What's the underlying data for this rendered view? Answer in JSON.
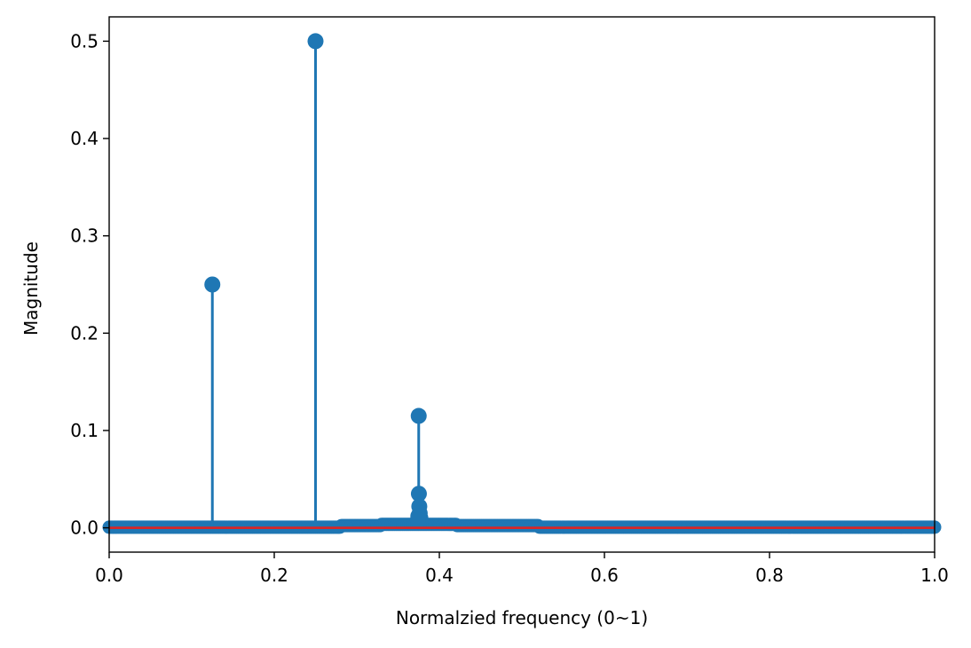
{
  "chart_data": {
    "type": "stem",
    "xlabel": "Normalzied frequency (0~1)",
    "ylabel": "Magnitude",
    "xlim": [
      0.0,
      1.0
    ],
    "ylim": [
      -0.025,
      0.525
    ],
    "xticks": [
      0.0,
      0.2,
      0.4,
      0.6,
      0.8,
      1.0
    ],
    "xtick_labels": [
      "0.0",
      "0.2",
      "0.4",
      "0.6",
      "0.8",
      "1.0"
    ],
    "yticks": [
      0.0,
      0.1,
      0.2,
      0.3,
      0.4,
      0.5
    ],
    "ytick_labels": [
      "0.0",
      "0.1",
      "0.2",
      "0.3",
      "0.4",
      "0.5"
    ],
    "grid": false,
    "baseline": 0,
    "colors": {
      "stem": "#1f77b4",
      "baseline": "#d62728",
      "axes": "#000000"
    },
    "series": [
      {
        "x": [
          0.125,
          0.25,
          0.375,
          0.3752,
          0.3757,
          0.3762,
          0.377,
          0.3745,
          0.374
        ],
        "values": [
          0.25,
          0.5,
          0.115,
          0.035,
          0.022,
          0.015,
          0.01,
          0.012,
          0.008
        ]
      }
    ]
  }
}
